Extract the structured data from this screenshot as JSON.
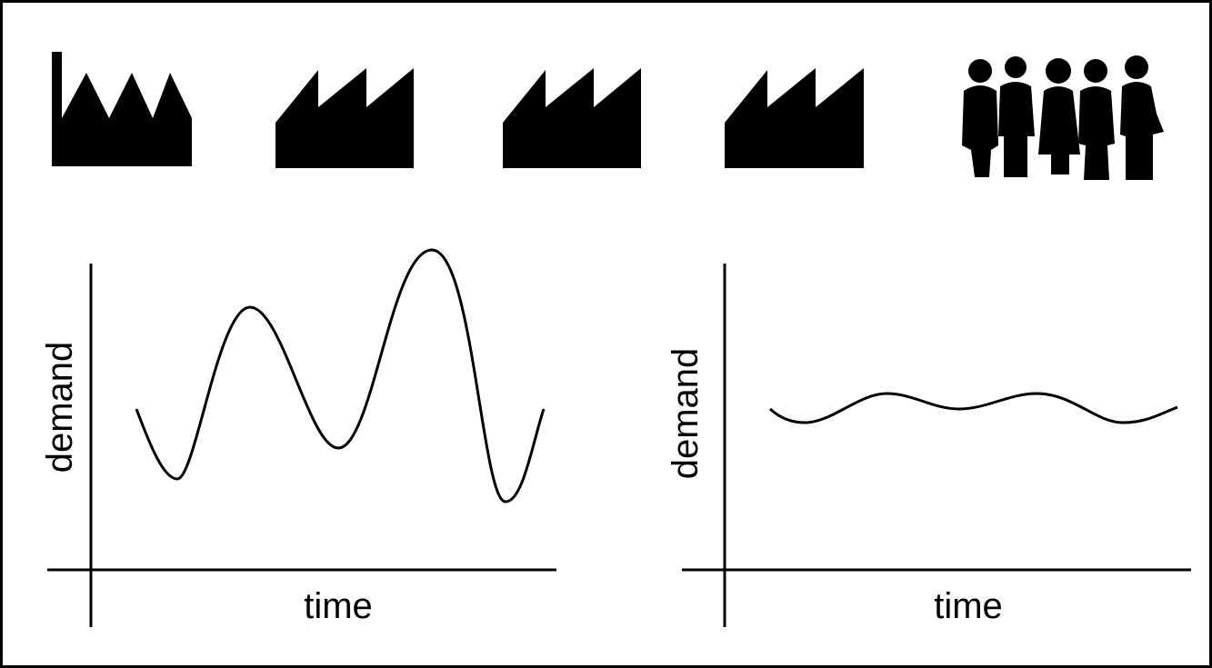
{
  "panels": [
    {
      "y_label": "demand",
      "x_label": "time"
    },
    {
      "y_label": "demand",
      "x_label": "time"
    }
  ]
}
